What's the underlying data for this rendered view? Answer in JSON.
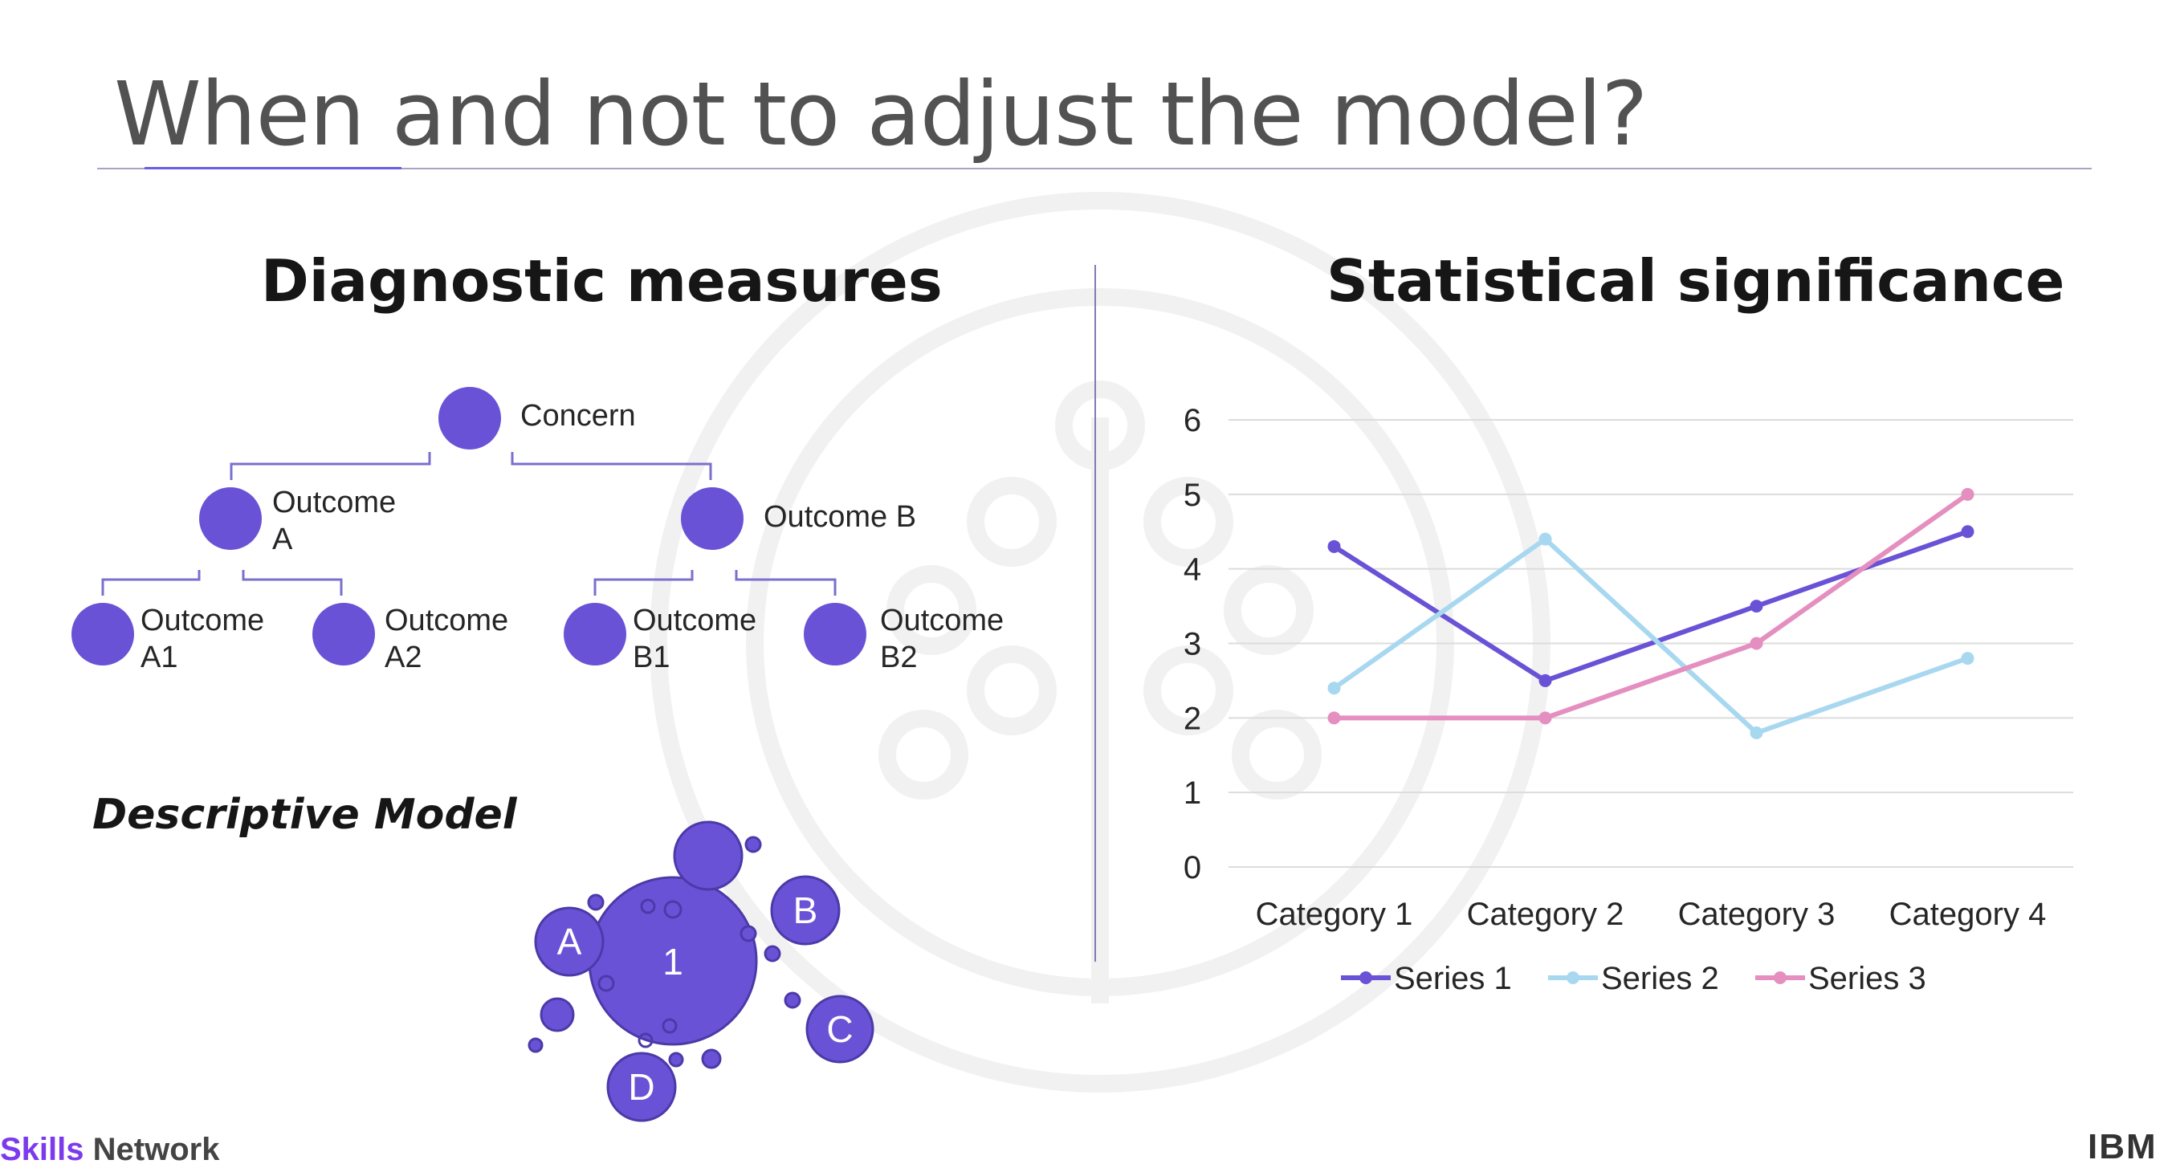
{
  "slide": {
    "title": "When and not to adjust the model?"
  },
  "left_panel": {
    "heading": "Diagnostic measures",
    "tree": {
      "root": "Concern",
      "level1": [
        "Outcome\nA",
        "Outcome B"
      ],
      "level2": [
        "Outcome\nA1",
        "Outcome\nA2",
        "Outcome\nB1",
        "Outcome\nB2"
      ]
    },
    "descriptive_model_label": "Descriptive Model",
    "bubbles": {
      "center": "1",
      "satellites": [
        "A",
        "B",
        "C",
        "D"
      ]
    }
  },
  "right_panel": {
    "heading": "Statistical significance"
  },
  "chart_data": {
    "type": "line",
    "title": "",
    "xlabel": "",
    "ylabel": "",
    "categories": [
      "Category 1",
      "Category 2",
      "Category 3",
      "Category 4"
    ],
    "ylim": [
      0,
      6
    ],
    "yticks": [
      "0",
      "1",
      "2",
      "3",
      "4",
      "5",
      "6"
    ],
    "grid": true,
    "legend_position": "bottom",
    "series": [
      {
        "name": "Series 1",
        "values": [
          4.3,
          2.5,
          3.5,
          4.5
        ],
        "color": "#6a52d6"
      },
      {
        "name": "Series 2",
        "values": [
          2.4,
          4.4,
          1.8,
          2.8
        ],
        "color": "#a8d8f0"
      },
      {
        "name": "Series 3",
        "values": [
          2.0,
          2.0,
          3.0,
          5.0
        ],
        "color": "#e48fc0"
      }
    ]
  },
  "footer": {
    "brand_part1": "Skills",
    "brand_part2": " Network",
    "right_logo": "IBM"
  },
  "colors": {
    "accent": "#6a52d6",
    "node": "#6a52d6",
    "line": "#7a6fcf"
  }
}
